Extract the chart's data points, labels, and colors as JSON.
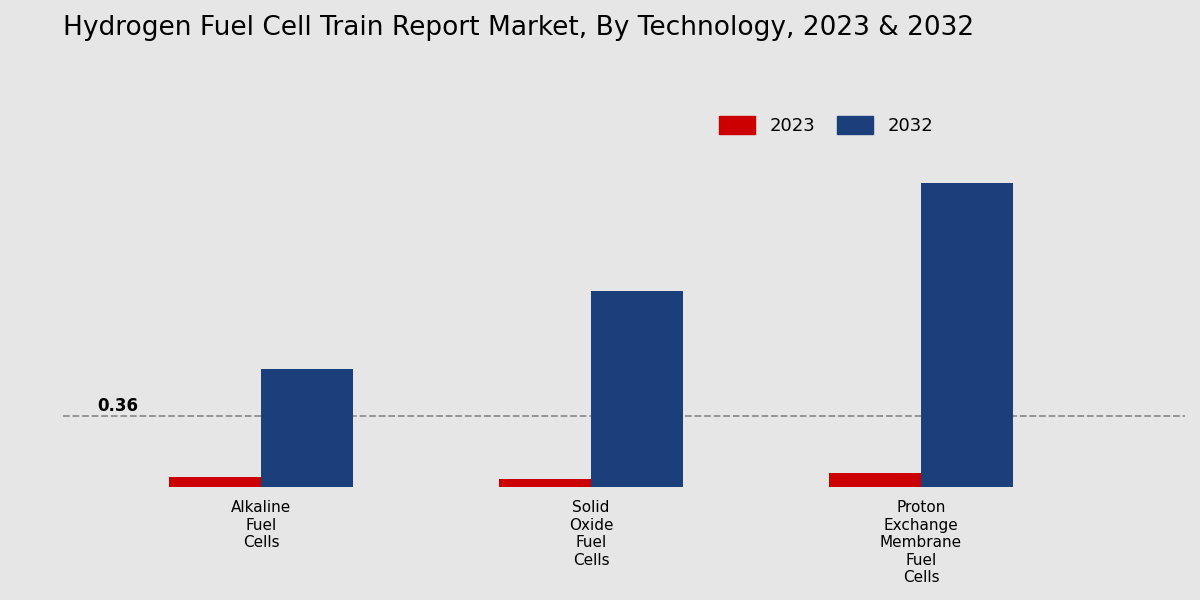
{
  "title": "Hydrogen Fuel Cell Train Report Market, By Technology, 2023 & 2032",
  "categories": [
    "Alkaline\nFuel\nCells",
    "Solid\nOxide\nFuel\nCells",
    "Proton\nExchange\nMembrane\nFuel\nCells"
  ],
  "values_2023": [
    0.05,
    0.04,
    0.07
  ],
  "values_2032": [
    0.6,
    1.0,
    1.55
  ],
  "color_2023": "#cc0000",
  "color_2032": "#1b3f7a",
  "background_color": "#e6e6e6",
  "dashed_line_y": 0.36,
  "annotation_text": "0.36",
  "bar_width": 0.28,
  "legend_2023": "2023",
  "legend_2032": "2032",
  "title_fontsize": 19,
  "ylabel_fontsize": 12,
  "tick_fontsize": 11,
  "legend_fontsize": 13,
  "ylim_max": 2.2,
  "xlim_min": -0.6,
  "xlim_max": 2.8
}
